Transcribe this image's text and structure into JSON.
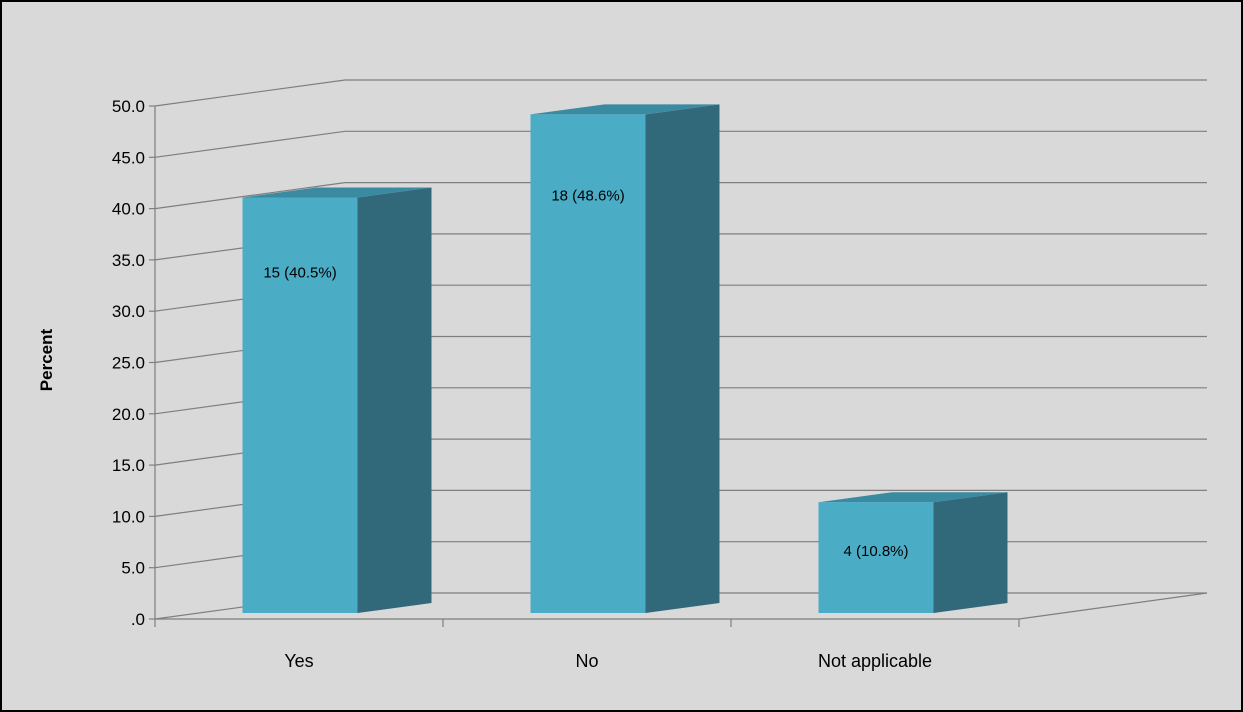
{
  "chart_data": {
    "type": "bar",
    "style": "3d-column",
    "categories": [
      "Yes",
      "No",
      "Not applicable"
    ],
    "values": [
      40.5,
      48.6,
      10.8
    ],
    "data_labels": [
      "15 (40.5%)",
      "18 (48.6%)",
      "4 (10.8%)"
    ],
    "ytick_labels": [
      ".0",
      "5.0",
      "10.0",
      "15.0",
      "20.0",
      "25.0",
      "30.0",
      "35.0",
      "40.0",
      "45.0",
      "50.0"
    ],
    "ylabel": "Percent",
    "xlabel": "",
    "ylim": [
      0,
      50
    ],
    "ystep": 5,
    "grid": true,
    "legend": "none",
    "colors": {
      "background": "#d9d9d9",
      "bar_front": "#4bacc6",
      "bar_side": "#31697b",
      "bar_top": "#3a8aa1",
      "gridline": "#7f7f7f"
    }
  }
}
